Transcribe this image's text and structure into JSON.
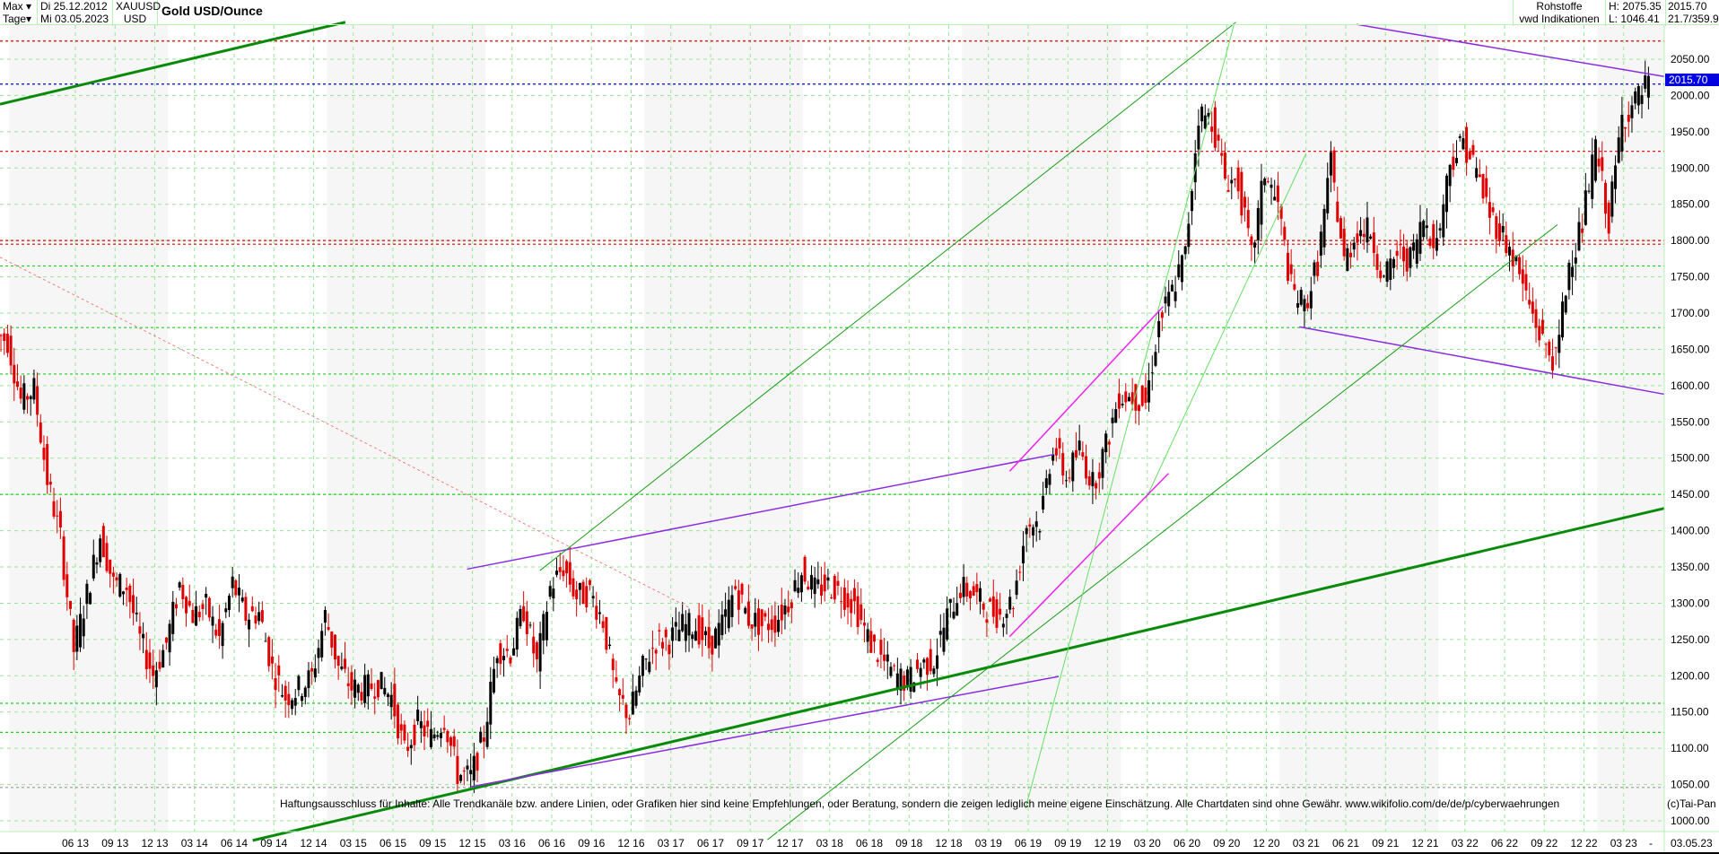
{
  "header": {
    "range": "Max",
    "interval": "Tage",
    "date_from": "Di 25.12.2012",
    "date_to": "Mi 03.05.2023",
    "symbol": "XAUUSD",
    "currency": "USD",
    "title": "Gold USD/Ounce",
    "category": "Rohstoffe",
    "source": "vwd Indikationen",
    "high": "H: 2075.35",
    "low": "L: 1046.41",
    "last": "2015.70",
    "ratio": "21.7/359.9"
  },
  "footer": {
    "disclaimer": "Haftungsausschluss für Inhalte: Alle Trendkanäle bzw. andere Linien, oder Grafiken hier sind keine Empfehlungen, oder Beratung, sondern die zeigen lediglich meine eigene Einschätzung. Alle Chartdaten sind ohne Gewähr.  www.wikifolio.com/de/de/p/cyberwaehrungen",
    "copyright": "(c)Tai-Pan",
    "end_date": "03.05.23",
    "dash": "-"
  },
  "chart_data": {
    "type": "candlestick",
    "title": "Gold USD/Ounce",
    "ylim": [
      1000,
      2050
    ],
    "ytick_step": 50,
    "colors": {
      "up": "#000000",
      "down": "#e00000",
      "last": "#0000e0",
      "grid": "#99e699"
    },
    "xticks": [
      "06 13",
      "09 13",
      "12 13",
      "03 14",
      "06 14",
      "09 14",
      "12 14",
      "03 15",
      "06 15",
      "09 15",
      "12 15",
      "03 16",
      "06 16",
      "09 16",
      "12 16",
      "03 17",
      "06 17",
      "09 17",
      "12 17",
      "03 18",
      "06 18",
      "09 18",
      "12 18",
      "03 19",
      "06 19",
      "09 19",
      "12 19",
      "03 20",
      "06 20",
      "09 20",
      "12 20",
      "03 21",
      "06 21",
      "09 21",
      "12 21",
      "03 22",
      "06 22",
      "09 22",
      "12 22",
      "03 23"
    ],
    "start": "12.2012",
    "closes_monthly": [
      1675,
      1662,
      1580,
      1595,
      1470,
      1390,
      1235,
      1312,
      1395,
      1327,
      1323,
      1250,
      1202,
      1245,
      1326,
      1284,
      1295,
      1250,
      1327,
      1282,
      1287,
      1210,
      1171,
      1182,
      1199,
      1283,
      1212,
      1183,
      1182,
      1190,
      1171,
      1095,
      1134,
      1115,
      1141,
      1065,
      1060,
      1118,
      1238,
      1232,
      1292,
      1215,
      1321,
      1350,
      1309,
      1315,
      1276,
      1173,
      1146,
      1210,
      1248,
      1249,
      1268,
      1268,
      1241,
      1269,
      1321,
      1279,
      1270,
      1275,
      1302,
      1345,
      1318,
      1325,
      1315,
      1298,
      1252,
      1223,
      1201,
      1192,
      1214,
      1222,
      1282,
      1321,
      1313,
      1292,
      1284,
      1305,
      1409,
      1413,
      1520,
      1472,
      1513,
      1464,
      1517,
      1587,
      1585,
      1577,
      1686,
      1730,
      1781,
      1975,
      1967,
      1886,
      1879,
      1776,
      1895,
      1847,
      1734,
      1708,
      1769,
      1906,
      1770,
      1814,
      1813,
      1743,
      1783,
      1774,
      1829,
      1796,
      1909,
      1937,
      1896,
      1837,
      1807,
      1766,
      1711,
      1660,
      1633,
      1768,
      1824,
      1928,
      1827,
      1969,
      1990,
      2015.7
    ],
    "hlines": [
      {
        "price": 2075,
        "color": "#e00000"
      },
      {
        "price": 1923,
        "color": "#e00000"
      },
      {
        "price": 1800,
        "color": "#e00000"
      },
      {
        "price": 1795,
        "color": "#e00000"
      },
      {
        "price": 2015.7,
        "color": "#0000e0"
      },
      {
        "price": 1765,
        "color": "#22cc22"
      },
      {
        "price": 1680,
        "color": "#22cc22"
      },
      {
        "price": 1616,
        "color": "#22cc22"
      },
      {
        "price": 1450,
        "color": "#22cc22"
      },
      {
        "price": 1162,
        "color": "#22cc22"
      },
      {
        "price": 1122,
        "color": "#22cc22"
      },
      {
        "price": 1046,
        "color": "#999999"
      }
    ],
    "trendlines": [
      {
        "m": [
          19.4,
          126.1
        ],
        "p": [
          973,
          1431
        ],
        "color": "#0a8a0a",
        "w": 3
      },
      {
        "m": [
          0.3,
          26.4
        ],
        "p": [
          1988,
          2101
        ],
        "color": "#0a8a0a",
        "w": 3
      },
      {
        "m": [
          35.6,
          79.9
        ],
        "p": [
          1347,
          1505
        ],
        "color": "#8a2be2",
        "w": 1.5
      },
      {
        "m": [
          35.9,
          80.3
        ],
        "p": [
          1047,
          1199
        ],
        "color": "#8a2be2",
        "w": 1.5
      },
      {
        "m": [
          102.8,
          126.1
        ],
        "p": [
          2098,
          2026
        ],
        "color": "#8a2be2",
        "w": 1.5
      },
      {
        "m": [
          98.5,
          126.1
        ],
        "p": [
          1681,
          1588
        ],
        "color": "#8a2be2",
        "w": 1.5
      },
      {
        "m": [
          41.1,
          93.7
        ],
        "p": [
          1345,
          2101
        ],
        "color": "#1a9a1a",
        "w": 1
      },
      {
        "m": [
          58.3,
          118
        ],
        "p": [
          974,
          1822
        ],
        "color": "#1a9a1a",
        "w": 1
      },
      {
        "m": [
          77.8,
          93.6
        ],
        "p": [
          1017,
          2101
        ],
        "color": "#66dd66",
        "w": 1
      },
      {
        "m": [
          86.9,
          99
        ],
        "p": [
          1444,
          1920
        ],
        "color": "#66dd66",
        "w": 1
      },
      {
        "m": [
          76.6,
          88.6
        ],
        "p": [
          1254,
          1479
        ],
        "color": "#ee22ee",
        "w": 1.5
      },
      {
        "m": [
          76.6,
          88.2
        ],
        "p": [
          1482,
          1709
        ],
        "color": "#ee22ee",
        "w": 1.5
      },
      {
        "m": [
          0.3,
          52.5
        ],
        "p": [
          1777,
          1293
        ],
        "color": "#f08080",
        "w": 1,
        "dash": true
      }
    ]
  }
}
